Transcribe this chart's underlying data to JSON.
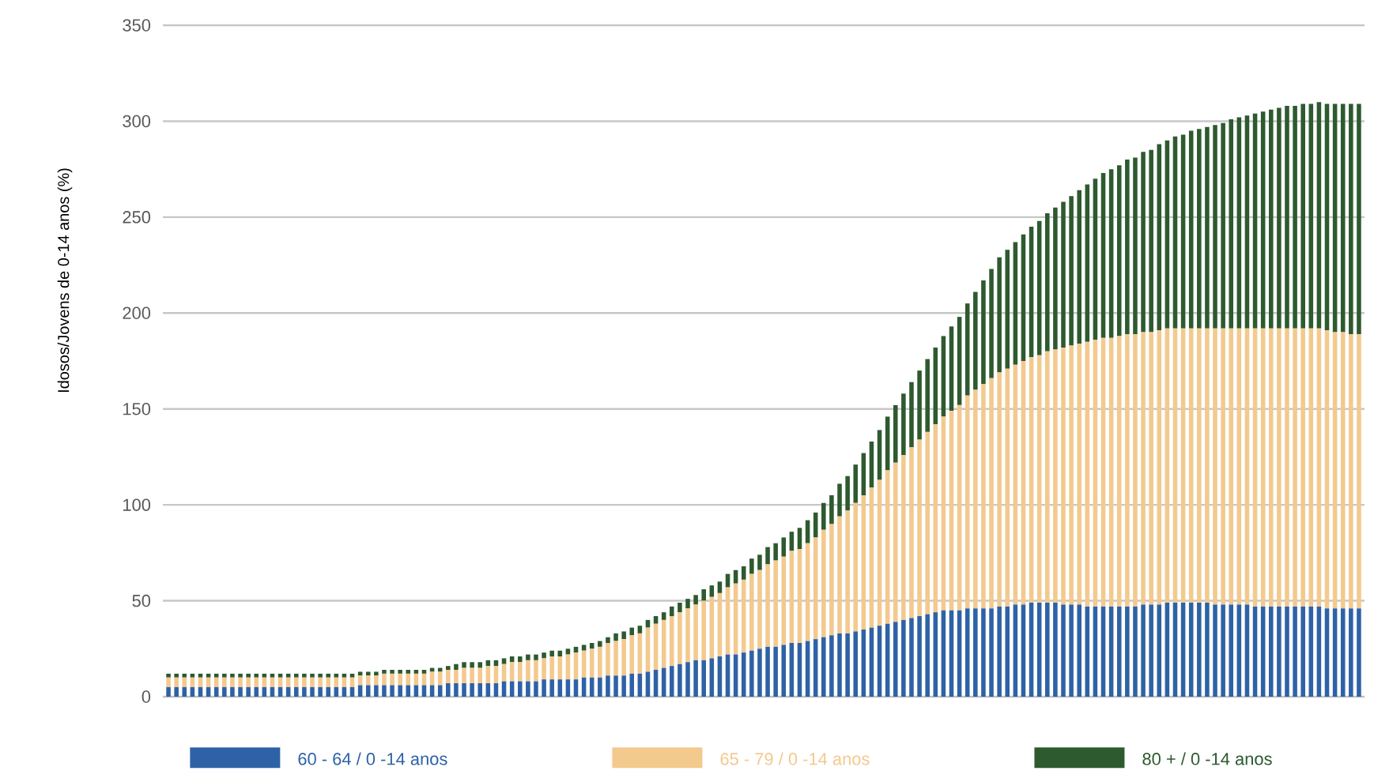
{
  "chart_data": {
    "type": "bar",
    "stacked": true,
    "ylabel": "Idosos/Jovens de 0-14 anos (%)",
    "categories": [
      null,
      null,
      null,
      null,
      null,
      null,
      null,
      null,
      null,
      null,
      null,
      null,
      null,
      null,
      null,
      null,
      null,
      null,
      null,
      null,
      null,
      null,
      null,
      null,
      null,
      null,
      null,
      null,
      null,
      null,
      null,
      null,
      null,
      null,
      null,
      null,
      null,
      null,
      null,
      null,
      null,
      null,
      null,
      null,
      null,
      null,
      null,
      null,
      null,
      null,
      null,
      null,
      null,
      null,
      null,
      null,
      null,
      null,
      null,
      null,
      null,
      null,
      null,
      null,
      null,
      null,
      null,
      null,
      null,
      null,
      null,
      null,
      null,
      null,
      null,
      null,
      null,
      null,
      null,
      null,
      null,
      null,
      null,
      null,
      null,
      null,
      null,
      null,
      null,
      null,
      null,
      null,
      null,
      null,
      null,
      null,
      null,
      null,
      null,
      null,
      null,
      null,
      null,
      null,
      null,
      null,
      null,
      null,
      null,
      null,
      null,
      null,
      null,
      null,
      null,
      null,
      null,
      null,
      null,
      null,
      null,
      null,
      null,
      null,
      null,
      null,
      null,
      null,
      null,
      null,
      null,
      null,
      null,
      null,
      null,
      null,
      null,
      null,
      null,
      null,
      null,
      null,
      null,
      null,
      null,
      null,
      null,
      null,
      null,
      null
    ],
    "series": [
      {
        "name": "60 - 64 / 0 -14  anos",
        "color": "#2e62a6",
        "values": [
          5,
          5,
          5,
          5,
          5,
          5,
          5,
          5,
          5,
          5,
          5,
          5,
          5,
          5,
          5,
          5,
          5,
          5,
          5,
          5,
          5,
          5,
          5,
          5,
          6,
          6,
          6,
          6,
          6,
          6,
          6,
          6,
          6,
          6,
          6,
          7,
          7,
          7,
          7,
          7,
          7,
          7,
          8,
          8,
          8,
          8,
          8,
          9,
          9,
          9,
          9,
          9,
          10,
          10,
          10,
          11,
          11,
          11,
          12,
          12,
          13,
          14,
          15,
          16,
          17,
          18,
          19,
          19,
          20,
          21,
          22,
          22,
          23,
          24,
          25,
          26,
          26,
          27,
          28,
          28,
          29,
          30,
          31,
          32,
          33,
          33,
          34,
          35,
          36,
          37,
          38,
          39,
          40,
          41,
          42,
          43,
          44,
          45,
          45,
          45,
          46,
          46,
          46,
          46,
          47,
          47,
          48,
          48,
          49,
          49,
          49,
          49,
          48,
          48,
          48,
          47,
          47,
          47,
          47,
          47,
          47,
          47,
          48,
          48,
          48,
          49,
          49,
          49,
          49,
          49,
          49,
          48,
          48,
          48,
          48,
          48,
          47,
          47,
          47,
          47,
          47,
          47,
          47,
          47,
          47,
          46,
          46,
          46,
          46,
          46
        ]
      },
      {
        "name": "65 - 79 / 0 -14  anos",
        "color": "#f3c98e",
        "values": [
          5,
          5,
          5,
          5,
          5,
          5,
          5,
          5,
          5,
          5,
          5,
          5,
          5,
          5,
          5,
          5,
          5,
          5,
          5,
          5,
          5,
          5,
          5,
          5,
          5,
          5,
          5,
          6,
          6,
          6,
          6,
          6,
          6,
          7,
          7,
          7,
          7,
          8,
          8,
          8,
          9,
          9,
          9,
          10,
          10,
          11,
          11,
          11,
          12,
          12,
          13,
          14,
          14,
          15,
          16,
          17,
          18,
          19,
          20,
          21,
          23,
          24,
          25,
          26,
          27,
          28,
          29,
          31,
          32,
          33,
          35,
          37,
          38,
          40,
          41,
          43,
          45,
          46,
          48,
          49,
          51,
          53,
          56,
          58,
          61,
          64,
          67,
          70,
          73,
          76,
          80,
          83,
          86,
          89,
          92,
          95,
          98,
          101,
          104,
          107,
          111,
          114,
          117,
          120,
          122,
          124,
          125,
          127,
          128,
          129,
          131,
          132,
          134,
          135,
          136,
          138,
          139,
          140,
          140,
          141,
          142,
          142,
          142,
          142,
          143,
          143,
          143,
          143,
          143,
          143,
          143,
          144,
          144,
          144,
          144,
          144,
          145,
          145,
          145,
          145,
          145,
          145,
          145,
          145,
          145,
          145,
          144,
          144,
          143,
          143
        ]
      },
      {
        "name": "80 + / 0 -14  anos",
        "color": "#2d5a2f",
        "values": [
          2,
          2,
          2,
          2,
          2,
          2,
          2,
          2,
          2,
          2,
          2,
          2,
          2,
          2,
          2,
          2,
          2,
          2,
          2,
          2,
          2,
          2,
          2,
          2,
          2,
          2,
          2,
          2,
          2,
          2,
          2,
          2,
          2,
          2,
          2,
          2,
          3,
          3,
          3,
          3,
          3,
          3,
          3,
          3,
          3,
          3,
          3,
          3,
          3,
          3,
          3,
          3,
          3,
          3,
          3,
          3,
          4,
          4,
          4,
          4,
          4,
          4,
          4,
          5,
          5,
          5,
          5,
          6,
          6,
          6,
          7,
          7,
          7,
          8,
          8,
          9,
          9,
          10,
          10,
          11,
          12,
          13,
          14,
          15,
          17,
          18,
          20,
          22,
          24,
          26,
          28,
          30,
          32,
          34,
          36,
          38,
          40,
          42,
          44,
          46,
          48,
          51,
          54,
          57,
          60,
          62,
          64,
          66,
          68,
          70,
          72,
          74,
          76,
          78,
          80,
          82,
          84,
          86,
          88,
          89,
          91,
          92,
          94,
          95,
          97,
          98,
          100,
          101,
          103,
          104,
          105,
          106,
          107,
          109,
          110,
          111,
          112,
          113,
          114,
          115,
          116,
          116,
          117,
          117,
          118,
          118,
          119,
          119,
          120,
          120
        ]
      }
    ],
    "ylim": [
      0,
      350
    ],
    "yticks": [
      0,
      50,
      100,
      150,
      200,
      250,
      300,
      350
    ],
    "grid": "y",
    "legend": "bottom"
  }
}
